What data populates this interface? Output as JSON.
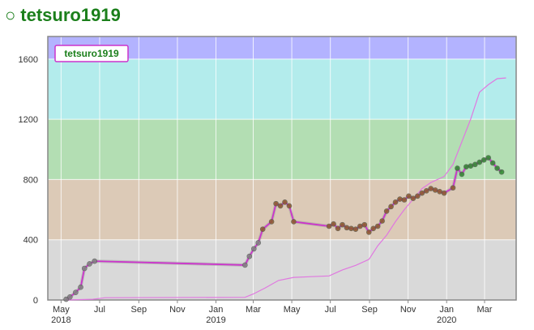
{
  "header": {
    "icon": "circle-icon",
    "icon_glyph": "○",
    "username": "tetsuro1919"
  },
  "chart_data": {
    "type": "line",
    "title": "",
    "xlabel": "",
    "ylabel": "",
    "legend": {
      "label": "tetsuro1919",
      "placement": "top-left"
    },
    "grid": true,
    "x_range": [
      "2018-04-10",
      "2020-04-20"
    ],
    "ylim": [
      0,
      1750
    ],
    "yticks": [
      0,
      400,
      800,
      1200,
      1600
    ],
    "xticks": [
      {
        "date": "2018-05-01",
        "label": "May",
        "year": "2018"
      },
      {
        "date": "2018-07-01",
        "label": "Jul",
        "year": ""
      },
      {
        "date": "2018-09-01",
        "label": "Sep",
        "year": ""
      },
      {
        "date": "2018-11-01",
        "label": "Nov",
        "year": ""
      },
      {
        "date": "2019-01-01",
        "label": "Jan",
        "year": "2019"
      },
      {
        "date": "2019-03-01",
        "label": "Mar",
        "year": ""
      },
      {
        "date": "2019-05-01",
        "label": "May",
        "year": ""
      },
      {
        "date": "2019-07-01",
        "label": "Jul",
        "year": ""
      },
      {
        "date": "2019-09-01",
        "label": "Sep",
        "year": ""
      },
      {
        "date": "2019-11-01",
        "label": "Nov",
        "year": ""
      },
      {
        "date": "2020-01-01",
        "label": "Jan",
        "year": "2020"
      },
      {
        "date": "2020-03-01",
        "label": "Mar",
        "year": ""
      }
    ],
    "bands": [
      {
        "from": 0,
        "to": 400,
        "color": "#d9d9d9"
      },
      {
        "from": 400,
        "to": 800,
        "color": "#dccab7"
      },
      {
        "from": 800,
        "to": 1200,
        "color": "#b3deb3"
      },
      {
        "from": 1200,
        "to": 1600,
        "color": "#b3ecec"
      },
      {
        "from": 1600,
        "to": 1750,
        "color": "#b3b3ff"
      }
    ],
    "series": [
      {
        "kind": "rating",
        "line_color": "#cc33cc",
        "points": [
          [
            "2018-05-09",
            5
          ],
          [
            "2018-05-15",
            20
          ],
          [
            "2018-05-24",
            50
          ],
          [
            "2018-06-01",
            85
          ],
          [
            "2018-06-07",
            210
          ],
          [
            "2018-06-15",
            240
          ],
          [
            "2018-06-23",
            258
          ],
          [
            "2019-02-16",
            232
          ],
          [
            "2019-02-23",
            290
          ],
          [
            "2019-03-02",
            340
          ],
          [
            "2019-03-09",
            380
          ],
          [
            "2019-03-16",
            470
          ],
          [
            "2019-03-30",
            520
          ],
          [
            "2019-04-06",
            640
          ],
          [
            "2019-04-13",
            625
          ],
          [
            "2019-04-20",
            650
          ],
          [
            "2019-04-27",
            625
          ],
          [
            "2019-05-04",
            520
          ],
          [
            "2019-06-29",
            490
          ],
          [
            "2019-07-06",
            505
          ],
          [
            "2019-07-13",
            475
          ],
          [
            "2019-07-20",
            500
          ],
          [
            "2019-07-27",
            480
          ],
          [
            "2019-08-03",
            475
          ],
          [
            "2019-08-10",
            470
          ],
          [
            "2019-08-17",
            490
          ],
          [
            "2019-08-24",
            500
          ],
          [
            "2019-08-31",
            450
          ],
          [
            "2019-09-07",
            475
          ],
          [
            "2019-09-14",
            490
          ],
          [
            "2019-09-21",
            525
          ],
          [
            "2019-09-28",
            590
          ],
          [
            "2019-10-05",
            620
          ],
          [
            "2019-10-12",
            650
          ],
          [
            "2019-10-19",
            670
          ],
          [
            "2019-10-26",
            665
          ],
          [
            "2019-11-02",
            690
          ],
          [
            "2019-11-09",
            675
          ],
          [
            "2019-11-16",
            690
          ],
          [
            "2019-11-23",
            710
          ],
          [
            "2019-11-30",
            725
          ],
          [
            "2019-12-07",
            740
          ],
          [
            "2019-12-14",
            730
          ],
          [
            "2019-12-21",
            720
          ],
          [
            "2019-12-28",
            710
          ],
          [
            "2020-01-11",
            745
          ],
          [
            "2020-01-18",
            875
          ],
          [
            "2020-01-25",
            835
          ],
          [
            "2020-02-01",
            885
          ],
          [
            "2020-02-08",
            890
          ],
          [
            "2020-02-15",
            900
          ],
          [
            "2020-02-22",
            915
          ],
          [
            "2020-02-29",
            930
          ],
          [
            "2020-03-07",
            945
          ],
          [
            "2020-03-14",
            910
          ],
          [
            "2020-03-21",
            875
          ],
          [
            "2020-03-28",
            850
          ]
        ]
      },
      {
        "kind": "performance",
        "line_color": "#e078e0",
        "points": [
          [
            "2018-05-09",
            0
          ],
          [
            "2018-06-20",
            5
          ],
          [
            "2018-07-10",
            15
          ],
          [
            "2019-02-16",
            18
          ],
          [
            "2019-03-01",
            40
          ],
          [
            "2019-03-20",
            80
          ],
          [
            "2019-04-10",
            130
          ],
          [
            "2019-05-04",
            150
          ],
          [
            "2019-06-29",
            160
          ],
          [
            "2019-07-20",
            200
          ],
          [
            "2019-08-10",
            230
          ],
          [
            "2019-08-31",
            270
          ],
          [
            "2019-09-14",
            360
          ],
          [
            "2019-09-28",
            430
          ],
          [
            "2019-10-12",
            520
          ],
          [
            "2019-10-26",
            600
          ],
          [
            "2019-11-09",
            670
          ],
          [
            "2019-11-23",
            740
          ],
          [
            "2019-12-07",
            780
          ],
          [
            "2019-12-28",
            820
          ],
          [
            "2020-01-11",
            900
          ],
          [
            "2020-01-25",
            1050
          ],
          [
            "2020-02-08",
            1200
          ],
          [
            "2020-02-22",
            1380
          ],
          [
            "2020-03-07",
            1430
          ],
          [
            "2020-03-21",
            1470
          ],
          [
            "2020-04-04",
            1475
          ]
        ]
      }
    ]
  }
}
